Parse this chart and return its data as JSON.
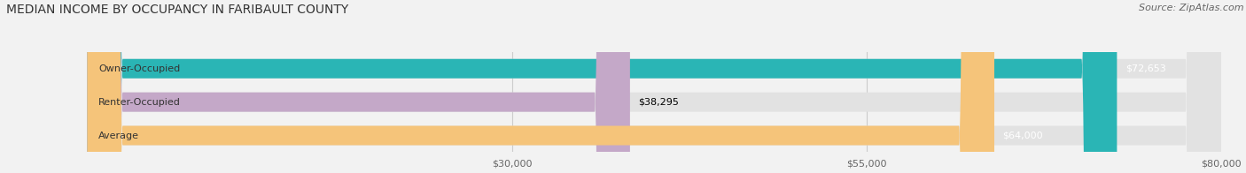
{
  "title": "MEDIAN INCOME BY OCCUPANCY IN FARIBAULT COUNTY",
  "source": "Source: ZipAtlas.com",
  "categories": [
    "Owner-Occupied",
    "Renter-Occupied",
    "Average"
  ],
  "values": [
    72653,
    38295,
    64000
  ],
  "bar_colors": [
    "#2ab5b5",
    "#c4a8c8",
    "#f5c47a"
  ],
  "bar_labels": [
    "$72,653",
    "$38,295",
    "$64,000"
  ],
  "value_label_colors": [
    "white",
    "black",
    "white"
  ],
  "xlim": [
    0,
    80000
  ],
  "xmin": 0,
  "xmax": 80000,
  "xticks": [
    30000,
    55000,
    80000
  ],
  "xticklabels": [
    "$30,000",
    "$55,000",
    "$80,000"
  ],
  "background_color": "#f2f2f2",
  "bar_background_color": "#e2e2e2",
  "title_fontsize": 10,
  "source_fontsize": 8,
  "label_fontsize": 8,
  "tick_fontsize": 8
}
